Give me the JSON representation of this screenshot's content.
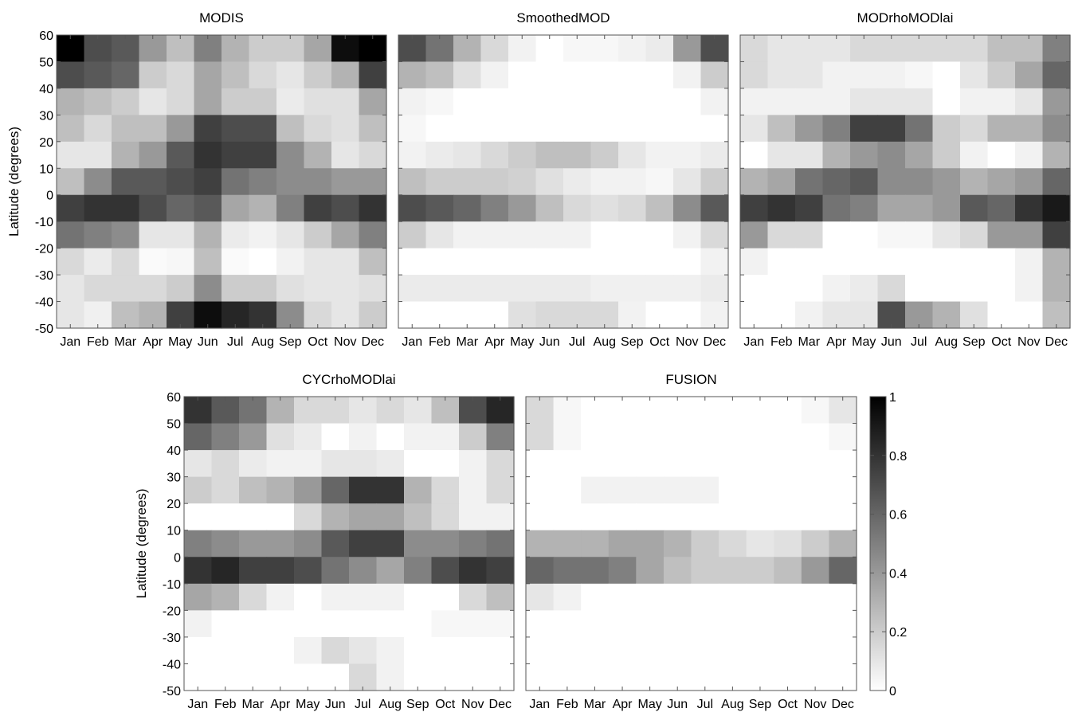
{
  "chart_data": {
    "type": "heatmap",
    "colormap": "gray",
    "colorbar": {
      "ticks": [
        "0",
        "0.2",
        "0.4",
        "0.6",
        "0.8",
        "1"
      ],
      "range": [
        0,
        1
      ]
    },
    "months": [
      "Jan",
      "Feb",
      "Mar",
      "Apr",
      "May",
      "Jun",
      "Jul",
      "Aug",
      "Sep",
      "Oct",
      "Nov",
      "Dec"
    ],
    "y_ticks": [
      "60",
      "50",
      "40",
      "30",
      "20",
      "10",
      "0",
      "-10",
      "-20",
      "-30",
      "-40",
      "-50"
    ],
    "ylabel": "Latitude (degrees)",
    "ylim": [
      -50,
      60
    ],
    "row_order_note": "rows top to bottom",
    "panels": [
      {
        "title": "MODIS",
        "values": [
          [
            1.0,
            0.7,
            0.65,
            0.4,
            0.25,
            0.5,
            0.3,
            0.2,
            0.2,
            0.35,
            0.95,
            1.0
          ],
          [
            0.7,
            0.65,
            0.6,
            0.2,
            0.15,
            0.35,
            0.25,
            0.15,
            0.1,
            0.2,
            0.3,
            0.75
          ],
          [
            0.3,
            0.25,
            0.2,
            0.1,
            0.15,
            0.35,
            0.2,
            0.2,
            0.08,
            0.12,
            0.12,
            0.35
          ],
          [
            0.25,
            0.15,
            0.25,
            0.25,
            0.4,
            0.75,
            0.7,
            0.7,
            0.25,
            0.15,
            0.12,
            0.25
          ],
          [
            0.1,
            0.1,
            0.3,
            0.4,
            0.65,
            0.8,
            0.75,
            0.75,
            0.45,
            0.3,
            0.1,
            0.15
          ],
          [
            0.25,
            0.45,
            0.65,
            0.65,
            0.7,
            0.75,
            0.55,
            0.5,
            0.45,
            0.45,
            0.4,
            0.4
          ],
          [
            0.75,
            0.8,
            0.8,
            0.7,
            0.6,
            0.65,
            0.35,
            0.3,
            0.5,
            0.75,
            0.7,
            0.8
          ],
          [
            0.55,
            0.5,
            0.45,
            0.1,
            0.1,
            0.3,
            0.08,
            0.05,
            0.1,
            0.2,
            0.35,
            0.5
          ],
          [
            0.15,
            0.08,
            0.15,
            0.02,
            0.03,
            0.25,
            0.02,
            0.0,
            0.05,
            0.1,
            0.1,
            0.25
          ],
          [
            0.1,
            0.15,
            0.15,
            0.15,
            0.2,
            0.45,
            0.2,
            0.2,
            0.12,
            0.1,
            0.1,
            0.12
          ],
          [
            0.1,
            0.06,
            0.25,
            0.3,
            0.75,
            0.95,
            0.85,
            0.8,
            0.45,
            0.15,
            0.1,
            0.2
          ]
        ]
      },
      {
        "title": "SmoothedMOD",
        "values": [
          [
            0.7,
            0.55,
            0.3,
            0.15,
            0.05,
            0.0,
            0.03,
            0.03,
            0.05,
            0.08,
            0.4,
            0.7
          ],
          [
            0.3,
            0.25,
            0.12,
            0.05,
            0.0,
            0.0,
            0.0,
            0.0,
            0.0,
            0.0,
            0.05,
            0.2
          ],
          [
            0.05,
            0.03,
            0.0,
            0.0,
            0.0,
            0.0,
            0.0,
            0.0,
            0.0,
            0.0,
            0.0,
            0.05
          ],
          [
            0.03,
            0.0,
            0.0,
            0.0,
            0.0,
            0.0,
            0.0,
            0.0,
            0.0,
            0.0,
            0.0,
            0.0
          ],
          [
            0.05,
            0.08,
            0.1,
            0.15,
            0.2,
            0.25,
            0.25,
            0.2,
            0.1,
            0.05,
            0.05,
            0.08
          ],
          [
            0.25,
            0.2,
            0.2,
            0.2,
            0.18,
            0.12,
            0.08,
            0.05,
            0.05,
            0.03,
            0.1,
            0.2
          ],
          [
            0.7,
            0.65,
            0.6,
            0.5,
            0.4,
            0.25,
            0.15,
            0.12,
            0.15,
            0.25,
            0.45,
            0.65
          ],
          [
            0.2,
            0.1,
            0.05,
            0.05,
            0.05,
            0.05,
            0.05,
            0.0,
            0.0,
            0.0,
            0.05,
            0.15
          ],
          [
            0.0,
            0.0,
            0.0,
            0.0,
            0.0,
            0.0,
            0.0,
            0.0,
            0.0,
            0.0,
            0.0,
            0.05
          ],
          [
            0.08,
            0.08,
            0.08,
            0.08,
            0.08,
            0.08,
            0.08,
            0.06,
            0.06,
            0.06,
            0.06,
            0.08
          ],
          [
            0.0,
            0.0,
            0.0,
            0.0,
            0.12,
            0.15,
            0.15,
            0.15,
            0.05,
            0.0,
            0.0,
            0.05
          ]
        ]
      },
      {
        "title": "MODrhoMODlai",
        "values": [
          [
            0.15,
            0.1,
            0.1,
            0.1,
            0.15,
            0.15,
            0.15,
            0.15,
            0.15,
            0.25,
            0.25,
            0.5
          ],
          [
            0.15,
            0.1,
            0.1,
            0.05,
            0.05,
            0.05,
            0.03,
            0.0,
            0.1,
            0.2,
            0.35,
            0.6
          ],
          [
            0.05,
            0.05,
            0.05,
            0.05,
            0.1,
            0.1,
            0.1,
            0.0,
            0.05,
            0.05,
            0.1,
            0.4
          ],
          [
            0.1,
            0.25,
            0.4,
            0.5,
            0.75,
            0.75,
            0.55,
            0.2,
            0.15,
            0.3,
            0.3,
            0.45
          ],
          [
            0.0,
            0.1,
            0.1,
            0.3,
            0.4,
            0.45,
            0.35,
            0.2,
            0.05,
            0.0,
            0.05,
            0.3
          ],
          [
            0.3,
            0.35,
            0.55,
            0.6,
            0.65,
            0.45,
            0.45,
            0.4,
            0.3,
            0.35,
            0.4,
            0.6
          ],
          [
            0.75,
            0.8,
            0.75,
            0.55,
            0.5,
            0.35,
            0.35,
            0.4,
            0.65,
            0.6,
            0.8,
            0.9
          ],
          [
            0.4,
            0.15,
            0.15,
            0.0,
            0.0,
            0.03,
            0.03,
            0.1,
            0.15,
            0.4,
            0.4,
            0.75
          ],
          [
            0.05,
            0.0,
            0.0,
            0.0,
            0.0,
            0.0,
            0.0,
            0.0,
            0.0,
            0.0,
            0.05,
            0.3
          ],
          [
            0.0,
            0.0,
            0.0,
            0.05,
            0.08,
            0.15,
            0.0,
            0.0,
            0.0,
            0.0,
            0.05,
            0.3
          ],
          [
            0.0,
            0.0,
            0.05,
            0.1,
            0.1,
            0.7,
            0.4,
            0.3,
            0.12,
            0.0,
            0.0,
            0.25
          ]
        ]
      },
      {
        "title": "CYCrhoMODlai",
        "values": [
          [
            0.8,
            0.65,
            0.55,
            0.3,
            0.15,
            0.15,
            0.1,
            0.15,
            0.1,
            0.25,
            0.7,
            0.85
          ],
          [
            0.6,
            0.5,
            0.4,
            0.12,
            0.08,
            0.0,
            0.05,
            0.0,
            0.05,
            0.05,
            0.2,
            0.5
          ],
          [
            0.1,
            0.15,
            0.08,
            0.05,
            0.05,
            0.1,
            0.1,
            0.08,
            0.0,
            0.0,
            0.05,
            0.15
          ],
          [
            0.2,
            0.15,
            0.25,
            0.3,
            0.4,
            0.6,
            0.8,
            0.8,
            0.3,
            0.15,
            0.05,
            0.15
          ],
          [
            0.0,
            0.0,
            0.0,
            0.0,
            0.15,
            0.3,
            0.35,
            0.35,
            0.25,
            0.15,
            0.05,
            0.05
          ],
          [
            0.5,
            0.45,
            0.4,
            0.4,
            0.45,
            0.65,
            0.75,
            0.75,
            0.45,
            0.45,
            0.5,
            0.55
          ],
          [
            0.8,
            0.85,
            0.75,
            0.75,
            0.7,
            0.55,
            0.45,
            0.35,
            0.5,
            0.7,
            0.8,
            0.75
          ],
          [
            0.35,
            0.3,
            0.15,
            0.05,
            0.0,
            0.05,
            0.05,
            0.05,
            0.0,
            0.0,
            0.15,
            0.25
          ],
          [
            0.05,
            0.0,
            0.0,
            0.0,
            0.0,
            0.0,
            0.0,
            0.0,
            0.0,
            0.03,
            0.03,
            0.03
          ],
          [
            0.0,
            0.0,
            0.0,
            0.0,
            0.05,
            0.15,
            0.1,
            0.05,
            0.0,
            0.0,
            0.0,
            0.0
          ],
          [
            0.0,
            0.0,
            0.0,
            0.0,
            0.0,
            0.0,
            0.15,
            0.05,
            0.0,
            0.0,
            0.0,
            0.0
          ]
        ]
      },
      {
        "title": "FUSION",
        "values": [
          [
            0.15,
            0.03,
            0.0,
            0.0,
            0.0,
            0.0,
            0.0,
            0.0,
            0.0,
            0.0,
            0.03,
            0.1
          ],
          [
            0.15,
            0.03,
            0.0,
            0.0,
            0.0,
            0.0,
            0.0,
            0.0,
            0.0,
            0.0,
            0.0,
            0.03
          ],
          [
            0.0,
            0.0,
            0.0,
            0.0,
            0.0,
            0.0,
            0.0,
            0.0,
            0.0,
            0.0,
            0.0,
            0.0
          ],
          [
            0.0,
            0.0,
            0.05,
            0.05,
            0.05,
            0.05,
            0.05,
            0.0,
            0.0,
            0.0,
            0.0,
            0.0
          ],
          [
            0.0,
            0.0,
            0.0,
            0.0,
            0.0,
            0.0,
            0.0,
            0.0,
            0.0,
            0.0,
            0.0,
            0.0
          ],
          [
            0.3,
            0.3,
            0.3,
            0.35,
            0.35,
            0.3,
            0.2,
            0.15,
            0.1,
            0.12,
            0.2,
            0.3
          ],
          [
            0.6,
            0.55,
            0.55,
            0.5,
            0.35,
            0.25,
            0.2,
            0.2,
            0.2,
            0.25,
            0.4,
            0.6
          ],
          [
            0.1,
            0.05,
            0.0,
            0.0,
            0.0,
            0.0,
            0.0,
            0.0,
            0.0,
            0.0,
            0.0,
            0.0
          ],
          [
            0.0,
            0.0,
            0.0,
            0.0,
            0.0,
            0.0,
            0.0,
            0.0,
            0.0,
            0.0,
            0.0,
            0.0
          ],
          [
            0.0,
            0.0,
            0.0,
            0.0,
            0.0,
            0.0,
            0.0,
            0.0,
            0.0,
            0.0,
            0.0,
            0.0
          ],
          [
            0.0,
            0.0,
            0.0,
            0.0,
            0.0,
            0.0,
            0.0,
            0.0,
            0.0,
            0.0,
            0.0,
            0.0
          ]
        ]
      }
    ]
  }
}
